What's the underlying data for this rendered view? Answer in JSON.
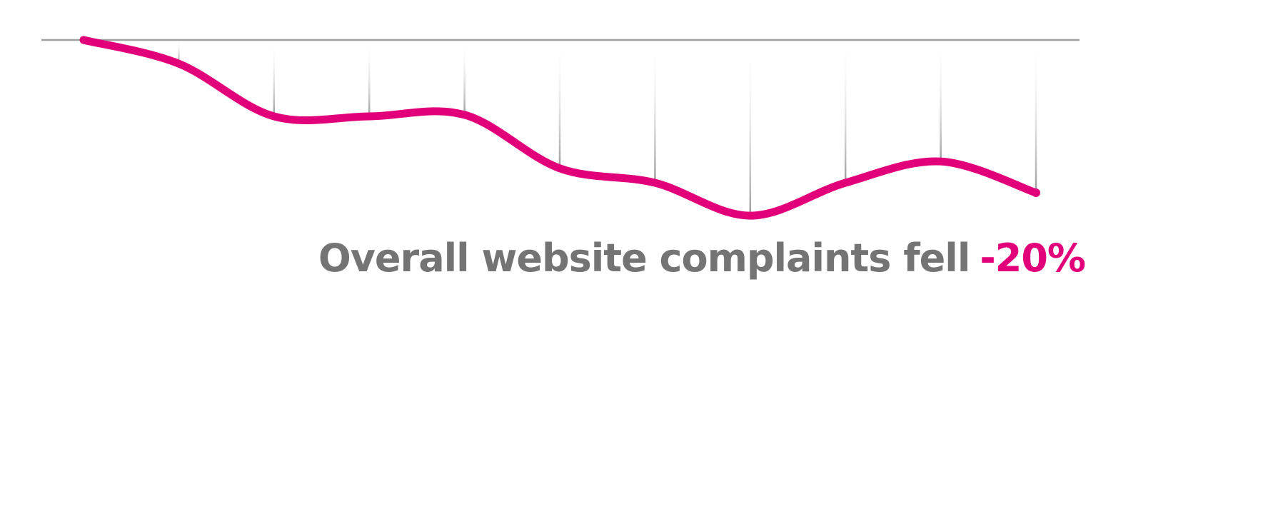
{
  "chart_data": {
    "type": "line",
    "title": "",
    "xlabel": "",
    "ylabel": "",
    "x": [
      0,
      1,
      2,
      3,
      4,
      5,
      6,
      7,
      8,
      9,
      10
    ],
    "series": [
      {
        "values": [
          0,
          -3.1,
          -10,
          -10,
          -9.8,
          -16.8,
          -18.7,
          -23,
          -18.7,
          -15.9,
          -20
        ]
      }
    ],
    "ylim": [
      -25,
      0
    ],
    "grid": "vertical drop lines from baseline",
    "colors": {
      "line": "#e2007a",
      "baseline": "#a0a0a0",
      "text": "#747474"
    }
  },
  "caption": {
    "text": "Overall website complaints fell",
    "value": "-20%"
  }
}
